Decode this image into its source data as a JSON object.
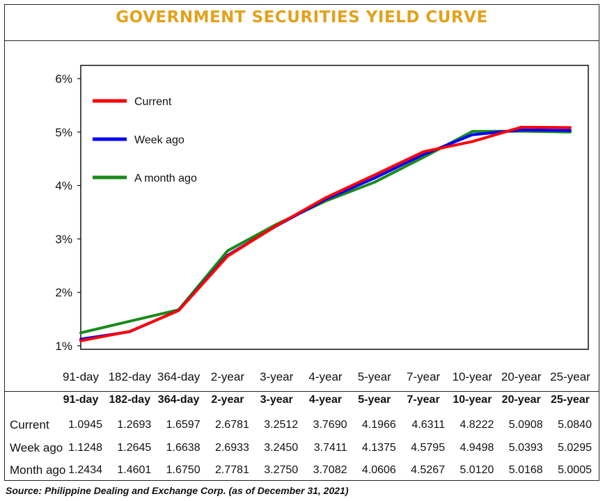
{
  "title": "GOVERNMENT SECURITIES YIELD CURVE",
  "source": "Source: Philippine Dealing and Exchange Corp. (as of December  31, 2021)",
  "colors": {
    "title": "#e2a21c",
    "current": "#ff0000",
    "week_ago": "#0000ff",
    "month_ago": "#1a8a1a"
  },
  "chart_data": {
    "type": "line",
    "title": "GOVERNMENT SECURITIES YIELD CURVE",
    "xlabel": "",
    "ylabel": "",
    "ylim": [
      1,
      6
    ],
    "y_ticks": [
      "1%",
      "2%",
      "3%",
      "4%",
      "5%",
      "6%"
    ],
    "categories": [
      "91-day",
      "182-day",
      "364-day",
      "2-year",
      "3-year",
      "4-year",
      "5-year",
      "7-year",
      "10-year",
      "20-year",
      "25-year"
    ],
    "legend_position": "top-left",
    "grid": false,
    "series": [
      {
        "name": "Current",
        "color": "#ff0000",
        "values": [
          1.0945,
          1.2693,
          1.6597,
          2.6781,
          3.2512,
          3.769,
          4.1966,
          4.6311,
          4.8222,
          5.0908,
          5.084
        ]
      },
      {
        "name": "Week ago",
        "color": "#0000ff",
        "values": [
          1.1248,
          1.2645,
          1.6638,
          2.6933,
          3.245,
          3.7411,
          4.1375,
          4.5795,
          4.9498,
          5.0393,
          5.0295
        ]
      },
      {
        "name": "A month ago",
        "color": "#1a8a1a",
        "values": [
          1.2434,
          1.4601,
          1.675,
          2.7781,
          3.275,
          3.7082,
          4.0606,
          4.5267,
          5.012,
          5.0168,
          5.0005
        ]
      }
    ]
  },
  "table": {
    "headers": [
      "91-day",
      "182-day",
      "364-day",
      "2-year",
      "3-year",
      "4-year",
      "5-year",
      "7-year",
      "10-year",
      "20-year",
      "25-year"
    ],
    "rows": [
      {
        "label": "Current",
        "values": [
          "1.0945",
          "1.2693",
          "1.6597",
          "2.6781",
          "3.2512",
          "3.7690",
          "4.1966",
          "4.6311",
          "4.8222",
          "5.0908",
          "5.0840"
        ]
      },
      {
        "label": "Week ago",
        "values": [
          "1.1248",
          "1.2645",
          "1.6638",
          "2.6933",
          "3.2450",
          "3.7411",
          "4.1375",
          "4.5795",
          "4.9498",
          "5.0393",
          "5.0295"
        ]
      },
      {
        "label": "Month ago",
        "values": [
          "1.2434",
          "1.4601",
          "1.6750",
          "2.7781",
          "3.2750",
          "3.7082",
          "4.0606",
          "4.5267",
          "5.0120",
          "5.0168",
          "5.0005"
        ]
      }
    ]
  }
}
